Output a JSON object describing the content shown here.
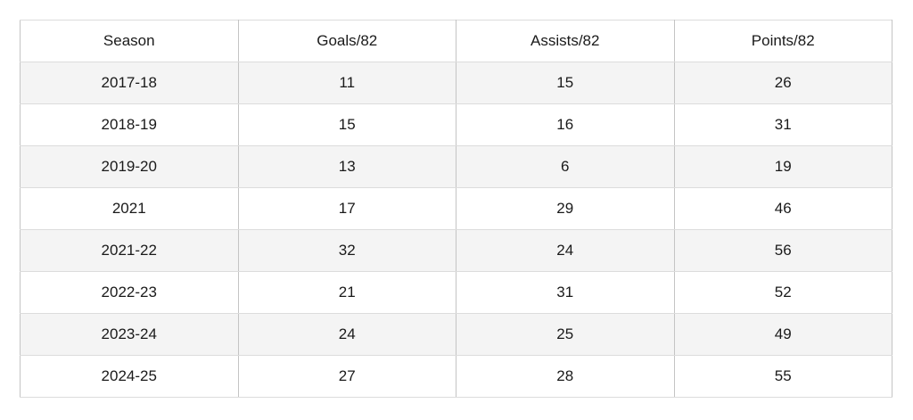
{
  "table": {
    "columns": [
      "Season",
      "Goals/82",
      "Assists/82",
      "Points/82"
    ],
    "rows": [
      [
        "2017-18",
        "11",
        "15",
        "26"
      ],
      [
        "2018-19",
        "15",
        "16",
        "31"
      ],
      [
        "2019-20",
        "13",
        "6",
        "19"
      ],
      [
        "2021",
        "17",
        "29",
        "46"
      ],
      [
        "2021-22",
        "32",
        "24",
        "56"
      ],
      [
        "2022-23",
        "21",
        "31",
        "52"
      ],
      [
        "2023-24",
        "24",
        "25",
        "49"
      ],
      [
        "2024-25",
        "27",
        "28",
        "55"
      ]
    ]
  },
  "colors": {
    "row_alt_background": "#f4f4f4",
    "row_background": "#ffffff",
    "border": "#c8c8c8",
    "text": "#1a1a1a"
  },
  "chart_data": {
    "type": "table",
    "title": "",
    "categories": [
      "2017-18",
      "2018-19",
      "2019-20",
      "2021",
      "2021-22",
      "2022-23",
      "2023-24",
      "2024-25"
    ],
    "series": [
      {
        "name": "Goals/82",
        "values": [
          11,
          15,
          13,
          17,
          32,
          21,
          24,
          27
        ]
      },
      {
        "name": "Assists/82",
        "values": [
          15,
          16,
          6,
          29,
          24,
          31,
          25,
          28
        ]
      },
      {
        "name": "Points/82",
        "values": [
          26,
          31,
          19,
          46,
          56,
          52,
          49,
          55
        ]
      }
    ],
    "xlabel": "Season",
    "ylabel": "",
    "layout_hints": "plain data table, header row on top, alternating shaded rows, all text centered"
  }
}
